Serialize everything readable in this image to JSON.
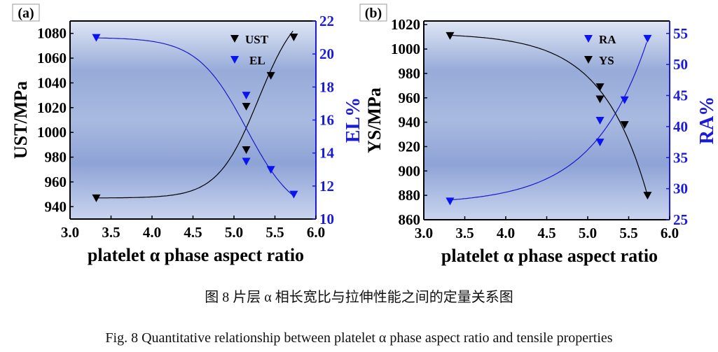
{
  "caption_cn": "图 8  片层 α 相长宽比与拉伸性能之间的定量关系图",
  "caption_en": "Fig. 8 Quantitative relationship between platelet α phase aspect ratio and tensile properties",
  "colors": {
    "black_series": "#000000",
    "blue_series": "#0000ff",
    "right_axis": "#1a1adc",
    "background_dark": "#8ea3d6",
    "background_light": "#dfe6f4"
  },
  "chart_data": [
    {
      "panel_label": "(a)",
      "type": "scatter",
      "xlabel": "platelet α phase aspect ratio",
      "ylabel": "UST/MPa",
      "ylabel_right": "EL%",
      "xlim": [
        3.0,
        6.0
      ],
      "ylim": [
        930,
        1090
      ],
      "ylim_right": [
        10,
        22
      ],
      "xticks": [
        "3.0",
        "3.5",
        "4.0",
        "4.5",
        "5.0",
        "5.5",
        "6.0"
      ],
      "yticks": [
        "940",
        "960",
        "980",
        "1000",
        "1020",
        "1040",
        "1060",
        "1080"
      ],
      "yticks_right": [
        "10",
        "12",
        "14",
        "16",
        "18",
        "20",
        "22"
      ],
      "legend_placement": "top-right",
      "grid": false,
      "series": [
        {
          "name": "UST",
          "axis": "left",
          "color": "#000000",
          "marker": "down-triangle",
          "fit": "sigmoid",
          "x": [
            3.32,
            5.15,
            5.15,
            5.45,
            5.73
          ],
          "y": [
            947,
            1021,
            986,
            1046,
            1077
          ]
        },
        {
          "name": "EL",
          "axis": "right",
          "color": "#0000ff",
          "marker": "down-triangle",
          "fit": "sigmoid",
          "x": [
            3.32,
            5.15,
            5.15,
            5.45,
            5.73
          ],
          "y": [
            21.0,
            17.5,
            13.5,
            13.0,
            11.5
          ]
        }
      ]
    },
    {
      "panel_label": "(b)",
      "type": "scatter",
      "xlabel": "platelet α phase aspect ratio",
      "ylabel": "YS/MPa",
      "ylabel_right": "RA%",
      "xlim": [
        3.0,
        6.0
      ],
      "ylim": [
        860,
        1023
      ],
      "ylim_right": [
        25,
        57
      ],
      "xticks": [
        "3.0",
        "3.5",
        "4.0",
        "4.5",
        "5.0",
        "5.5",
        "6.0"
      ],
      "yticks": [
        "860",
        "880",
        "900",
        "920",
        "940",
        "960",
        "980",
        "1000",
        "1020"
      ],
      "yticks_right": [
        "25",
        "30",
        "35",
        "40",
        "45",
        "50",
        "55"
      ],
      "legend_placement": "top-right",
      "grid": false,
      "series": [
        {
          "name": "RA",
          "axis": "right",
          "color": "#0000ff",
          "marker": "down-triangle",
          "fit": "exponential",
          "x": [
            3.32,
            5.15,
            5.15,
            5.45,
            5.73
          ],
          "y": [
            28.0,
            41.0,
            37.5,
            44.3,
            54.2
          ]
        },
        {
          "name": "YS",
          "axis": "left",
          "color": "#000000",
          "marker": "down-triangle",
          "fit": "exponential",
          "x": [
            3.32,
            5.15,
            5.15,
            5.45,
            5.73
          ],
          "y": [
            1011,
            969,
            959,
            938,
            880
          ]
        }
      ]
    }
  ]
}
